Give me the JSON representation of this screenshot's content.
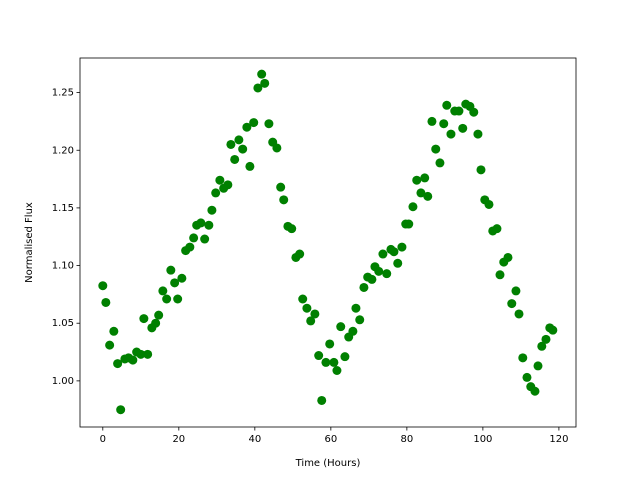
{
  "chart_data": {
    "type": "scatter",
    "xlabel": "Time (Hours)",
    "ylabel": "Normalised Flux",
    "color": "#008000",
    "xlim": [
      -6,
      124.5
    ],
    "ylim": [
      0.96,
      1.28
    ],
    "xticks": [
      0,
      20,
      40,
      60,
      80,
      100,
      120
    ],
    "yticks": [
      {
        "value": 1.0,
        "label": "1.00"
      },
      {
        "value": 1.05,
        "label": "1.05"
      },
      {
        "value": 1.1,
        "label": "1.10"
      },
      {
        "value": 1.15,
        "label": "1.15"
      },
      {
        "value": 1.2,
        "label": "1.20"
      },
      {
        "value": 1.25,
        "label": "1.25"
      }
    ],
    "x": [
      0,
      0.8,
      1.8,
      2.9,
      3.9,
      4.7,
      5.8,
      6.8,
      7.9,
      8.9,
      10,
      10.8,
      11.8,
      12.9,
      13.9,
      14.7,
      15.8,
      16.8,
      17.9,
      18.9,
      19.7,
      20.8,
      21.8,
      22.9,
      23.9,
      24.7,
      25.8,
      26.8,
      27.9,
      28.7,
      29.7,
      30.8,
      31.8,
      32.9,
      33.7,
      34.7,
      35.8,
      36.8,
      37.9,
      38.7,
      39.7,
      40.8,
      41.8,
      42.6,
      43.7,
      44.7,
      45.8,
      46.8,
      47.6,
      48.7,
      49.7,
      50.8,
      51.8,
      52.6,
      53.7,
      54.7,
      55.8,
      56.8,
      57.6,
      58.7,
      59.7,
      60.8,
      61.6,
      62.6,
      63.7,
      64.7,
      65.8,
      66.6,
      67.6,
      68.7,
      69.7,
      70.8,
      71.6,
      72.6,
      73.7,
      74.7,
      75.8,
      76.6,
      77.6,
      78.7,
      79.7,
      80.5,
      81.6,
      82.6,
      83.7,
      84.7,
      85.5,
      86.6,
      87.6,
      88.7,
      89.7,
      90.5,
      91.6,
      92.6,
      93.7,
      94.7,
      95.5,
      96.6,
      97.6,
      98.7,
      99.5,
      100.5,
      101.6,
      102.6,
      103.7,
      104.5,
      105.5,
      106.6,
      107.6,
      108.7,
      109.5,
      110.5,
      111.6,
      112.6,
      113.7,
      114.5,
      115.5,
      116.6,
      117.6,
      118.4
    ],
    "values": [
      1.0825,
      1.068,
      1.031,
      1.043,
      1.015,
      0.975,
      1.019,
      1.02,
      1.018,
      1.025,
      1.023,
      1.054,
      1.023,
      1.046,
      1.05,
      1.057,
      1.078,
      1.071,
      1.096,
      1.085,
      1.071,
      1.089,
      1.113,
      1.116,
      1.124,
      1.135,
      1.137,
      1.123,
      1.135,
      1.148,
      1.163,
      1.174,
      1.167,
      1.17,
      1.205,
      1.192,
      1.209,
      1.201,
      1.22,
      1.186,
      1.224,
      1.254,
      1.266,
      1.258,
      1.223,
      1.207,
      1.202,
      1.168,
      1.157,
      1.134,
      1.132,
      1.107,
      1.11,
      1.071,
      1.063,
      1.052,
      1.058,
      1.022,
      0.983,
      1.016,
      1.032,
      1.016,
      1.009,
      1.047,
      1.021,
      1.038,
      1.043,
      1.063,
      1.053,
      1.081,
      1.09,
      1.088,
      1.099,
      1.095,
      1.11,
      1.093,
      1.114,
      1.112,
      1.102,
      1.116,
      1.136,
      1.136,
      1.151,
      1.174,
      1.163,
      1.176,
      1.16,
      1.225,
      1.201,
      1.189,
      1.223,
      1.239,
      1.214,
      1.234,
      1.234,
      1.219,
      1.24,
      1.238,
      1.233,
      1.214,
      1.183,
      1.157,
      1.153,
      1.13,
      1.132,
      1.092,
      1.103,
      1.107,
      1.067,
      1.078,
      1.058,
      1.02,
      1.003,
      0.995,
      0.991,
      1.013,
      1.03,
      1.036,
      1.046,
      1.044
    ]
  }
}
